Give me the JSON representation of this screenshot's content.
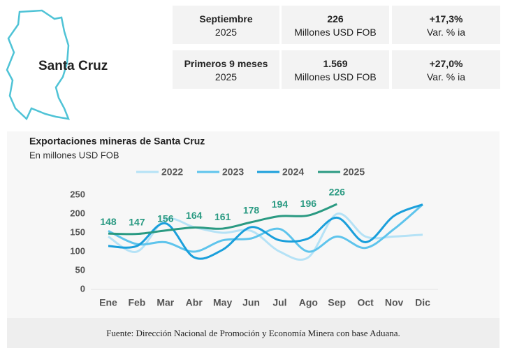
{
  "header": {
    "region": "Santa Cruz"
  },
  "stats": {
    "rows": [
      [
        {
          "label": "Septiembre",
          "sub": "2025"
        },
        {
          "label": "226",
          "sub": "Millones USD FOB"
        },
        {
          "label": "+17,3%",
          "sub": "Var. % ia"
        }
      ],
      [
        {
          "label": "Primeros 9 meses",
          "sub": "2025"
        },
        {
          "label": "1.569",
          "sub": "Millones USD FOB"
        },
        {
          "label": "+27,0%",
          "sub": "Var. % ia"
        }
      ]
    ]
  },
  "chart_data": {
    "type": "line",
    "title": "Exportaciones mineras de Santa Cruz",
    "subtitle": "En millones USD FOB",
    "categories": [
      "Ene",
      "Feb",
      "Mar",
      "Abr",
      "May",
      "Jun",
      "Jul",
      "Ago",
      "Sep",
      "Oct",
      "Nov",
      "Dic"
    ],
    "series": [
      {
        "name": "2022",
        "color": "#b5e2f6",
        "values": [
          140,
          100,
          185,
          165,
          150,
          155,
          100,
          85,
          200,
          140,
          140,
          145
        ]
      },
      {
        "name": "2023",
        "color": "#5ec4ec",
        "values": [
          155,
          120,
          125,
          100,
          130,
          135,
          160,
          100,
          140,
          110,
          160,
          225
        ]
      },
      {
        "name": "2024",
        "color": "#1a9fdb",
        "values": [
          115,
          115,
          175,
          85,
          105,
          165,
          130,
          135,
          190,
          125,
          195,
          225
        ]
      },
      {
        "name": "2025",
        "color": "#2a9a82",
        "values": [
          148,
          147,
          156,
          164,
          161,
          178,
          194,
          196,
          226,
          null,
          null,
          null
        ]
      }
    ],
    "data_labels_series": "2025",
    "ylim": [
      0,
      250
    ],
    "yticks": [
      0,
      50,
      100,
      150,
      200,
      250
    ],
    "grid": false
  },
  "footer": {
    "source": "Fuente: Dirección Nacional de Promoción y Economía Minera con base Aduana."
  }
}
